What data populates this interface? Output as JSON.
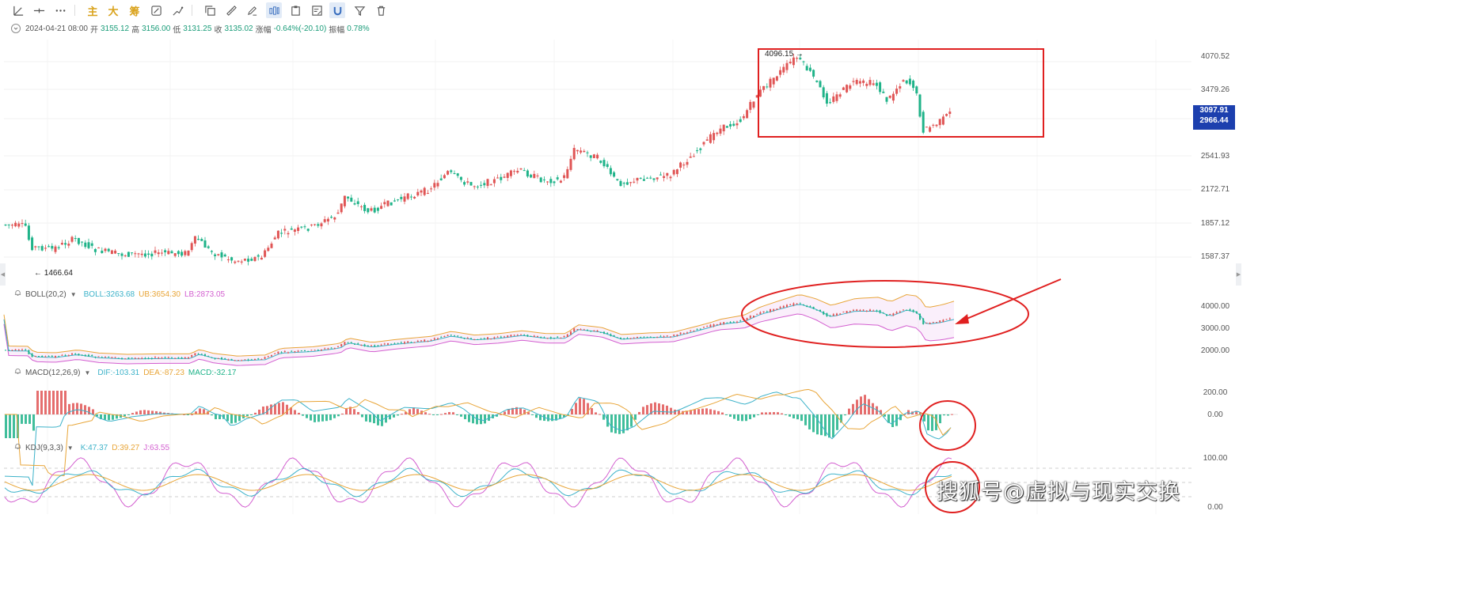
{
  "toolbar": {
    "draw_tools": [
      {
        "icon": "trend-angle-icon"
      },
      {
        "icon": "horizontal-line-icon"
      },
      {
        "icon": "more-dots-icon"
      }
    ],
    "quick_labels": [
      "主",
      "大",
      "筹"
    ],
    "tools": [
      {
        "icon": "edit-indicator-icon"
      },
      {
        "icon": "drawing-tool-icon"
      },
      {
        "icon": "copy-icon"
      },
      {
        "icon": "ruler-icon"
      },
      {
        "icon": "pen-icon"
      },
      {
        "icon": "candle-type-icon",
        "active": true
      },
      {
        "icon": "clipboard-icon"
      },
      {
        "icon": "notes-icon"
      },
      {
        "icon": "magnet-icon",
        "active": true
      },
      {
        "icon": "filter-icon"
      },
      {
        "icon": "trash-icon"
      }
    ]
  },
  "info": {
    "date": "2024-04-21 08:00",
    "open_label": "开",
    "open": "3155.12",
    "high_label": "高",
    "high": "3156.00",
    "low_label": "低",
    "low": "3131.25",
    "close_label": "收",
    "close": "3135.02",
    "change_label": "涨幅",
    "change": "-0.64%(-20.10)",
    "amplitude_label": "振幅",
    "amplitude": "0.78%"
  },
  "main_chart": {
    "price_axis": [
      "4070.52",
      "3479.26",
      "2541.93",
      "2172.71",
      "1857.12",
      "1587.37"
    ],
    "price_badge": [
      "3097.91",
      "2966.44"
    ],
    "high_tag": "4096.15",
    "low_tag": "1466.64"
  },
  "indicators": {
    "boll": {
      "name": "BOLL(20,2)",
      "boll": "BOLL:3263.68",
      "ub": "UB:3654.30",
      "lb": "LB:2873.05",
      "axis": [
        "4000.00",
        "3000.00",
        "2000.00"
      ]
    },
    "macd": {
      "name": "MACD(12,26,9)",
      "dif": "DIF:-103.31",
      "dea": "DEA:-87.23",
      "macd": "MACD:-32.17",
      "axis": [
        "200.00",
        "0.00"
      ]
    },
    "kdj": {
      "name": "KDJ(9,3,3)",
      "k": "K:47.37",
      "d": "D:39.27",
      "j": "J:63.55",
      "axis": [
        "100.00",
        "0.00"
      ]
    }
  },
  "watermark": "搜狐号@虚拟与现实交换",
  "colors": {
    "up": "#e05555",
    "down": "#1fb389",
    "boll_mid": "#3cb2c9",
    "boll_ub": "#e8a538",
    "boll_lb": "#d35fd0",
    "annotation": "#e02020",
    "badge": "#1c3fae"
  }
}
